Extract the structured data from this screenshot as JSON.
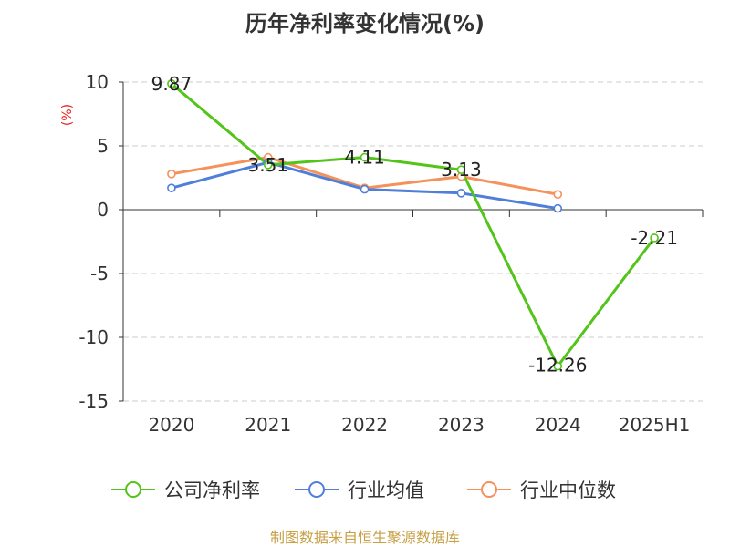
{
  "chart_data": {
    "type": "line",
    "title": "历年净利率变化情况(%)",
    "ylabel": "(%)",
    "categories": [
      "2020",
      "2021",
      "2022",
      "2023",
      "2024",
      "2025H1"
    ],
    "ylim": [
      -15,
      10
    ],
    "yticks": [
      10,
      5,
      0,
      -5,
      -10,
      -15
    ],
    "grid": true,
    "legend_position": "bottom",
    "series": [
      {
        "name": "公司净利率",
        "color": "#52c41a",
        "values": [
          9.87,
          3.51,
          4.11,
          3.13,
          -12.26,
          -2.21
        ],
        "labels": [
          "9.87",
          "3.51",
          "4.11",
          "3.13",
          "-12.26",
          "-2.21"
        ]
      },
      {
        "name": "行业均值",
        "color": "#4f7fd9",
        "values": [
          1.7,
          3.7,
          1.6,
          1.3,
          0.1,
          null
        ]
      },
      {
        "name": "行业中位数",
        "color": "#f5915b",
        "values": [
          2.8,
          4.1,
          1.7,
          2.6,
          1.2,
          null
        ]
      }
    ]
  },
  "colors": {
    "ylabel": "#e0201b",
    "source": "#c8a045",
    "grid": "#cccccc",
    "axis": "#333333"
  },
  "source": "制图数据来自恒生聚源数据库"
}
